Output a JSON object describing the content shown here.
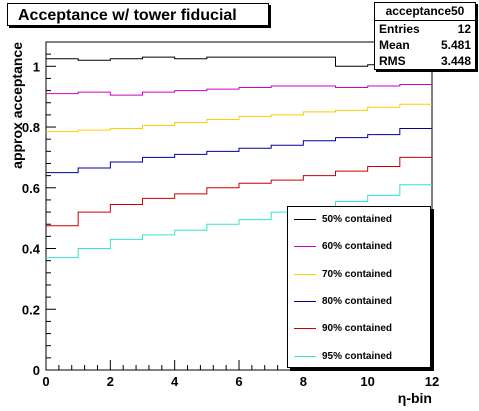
{
  "title": "Acceptance w/ tower fiducial",
  "stats": {
    "name": "acceptance50",
    "rows": [
      {
        "label": "Entries",
        "value": "12"
      },
      {
        "label": "Mean",
        "value": "5.481"
      },
      {
        "label": "RMS",
        "value": "3.448"
      }
    ]
  },
  "chart_data": {
    "type": "line",
    "step": true,
    "title": "Acceptance w/ tower fiducial",
    "xlabel": "η-bin",
    "ylabel": "approx acceptance",
    "xlim": [
      0,
      12
    ],
    "ylim": [
      0,
      1.08
    ],
    "x_ticks": [
      0,
      2,
      4,
      6,
      8,
      10,
      12
    ],
    "x_tick_labels": [
      "0",
      "2",
      "4",
      "6",
      "8",
      "10",
      "12"
    ],
    "y_ticks": [
      0,
      0.2,
      0.4,
      0.6,
      0.8,
      1.0
    ],
    "y_tick_labels": [
      "0",
      "0.2",
      "0.4",
      "0.6",
      "0.8",
      "1"
    ],
    "bin_edges": [
      0,
      1,
      2,
      3,
      4,
      5,
      6,
      7,
      8,
      9,
      10,
      11,
      12
    ],
    "series": [
      {
        "name": "50% contained",
        "color": "#000000",
        "values": [
          1.025,
          1.02,
          1.025,
          1.03,
          1.025,
          1.03,
          1.03,
          1.03,
          1.03,
          1.0,
          1.005,
          1.005
        ]
      },
      {
        "name": "60% contained",
        "color": "#cc00cc",
        "values": [
          0.91,
          0.915,
          0.905,
          0.915,
          0.92,
          0.925,
          0.93,
          0.935,
          0.935,
          0.93,
          0.935,
          0.94
        ]
      },
      {
        "name": "70% contained",
        "color": "#ffcc00",
        "values": [
          0.785,
          0.79,
          0.795,
          0.805,
          0.815,
          0.825,
          0.835,
          0.84,
          0.85,
          0.855,
          0.865,
          0.875
        ]
      },
      {
        "name": "80% contained",
        "color": "#000099",
        "values": [
          0.65,
          0.665,
          0.685,
          0.7,
          0.71,
          0.72,
          0.73,
          0.74,
          0.755,
          0.765,
          0.775,
          0.795
        ]
      },
      {
        "name": "90% contained",
        "color": "#cc0000",
        "values": [
          0.475,
          0.52,
          0.545,
          0.565,
          0.58,
          0.6,
          0.615,
          0.625,
          0.64,
          0.655,
          0.67,
          0.7
        ]
      },
      {
        "name": "95% contained",
        "color": "#33e6cc",
        "values": [
          0.37,
          0.4,
          0.43,
          0.445,
          0.46,
          0.48,
          0.495,
          0.52,
          0.535,
          0.555,
          0.575,
          0.61
        ]
      }
    ],
    "legend_position": "lower-right",
    "grid": false
  }
}
